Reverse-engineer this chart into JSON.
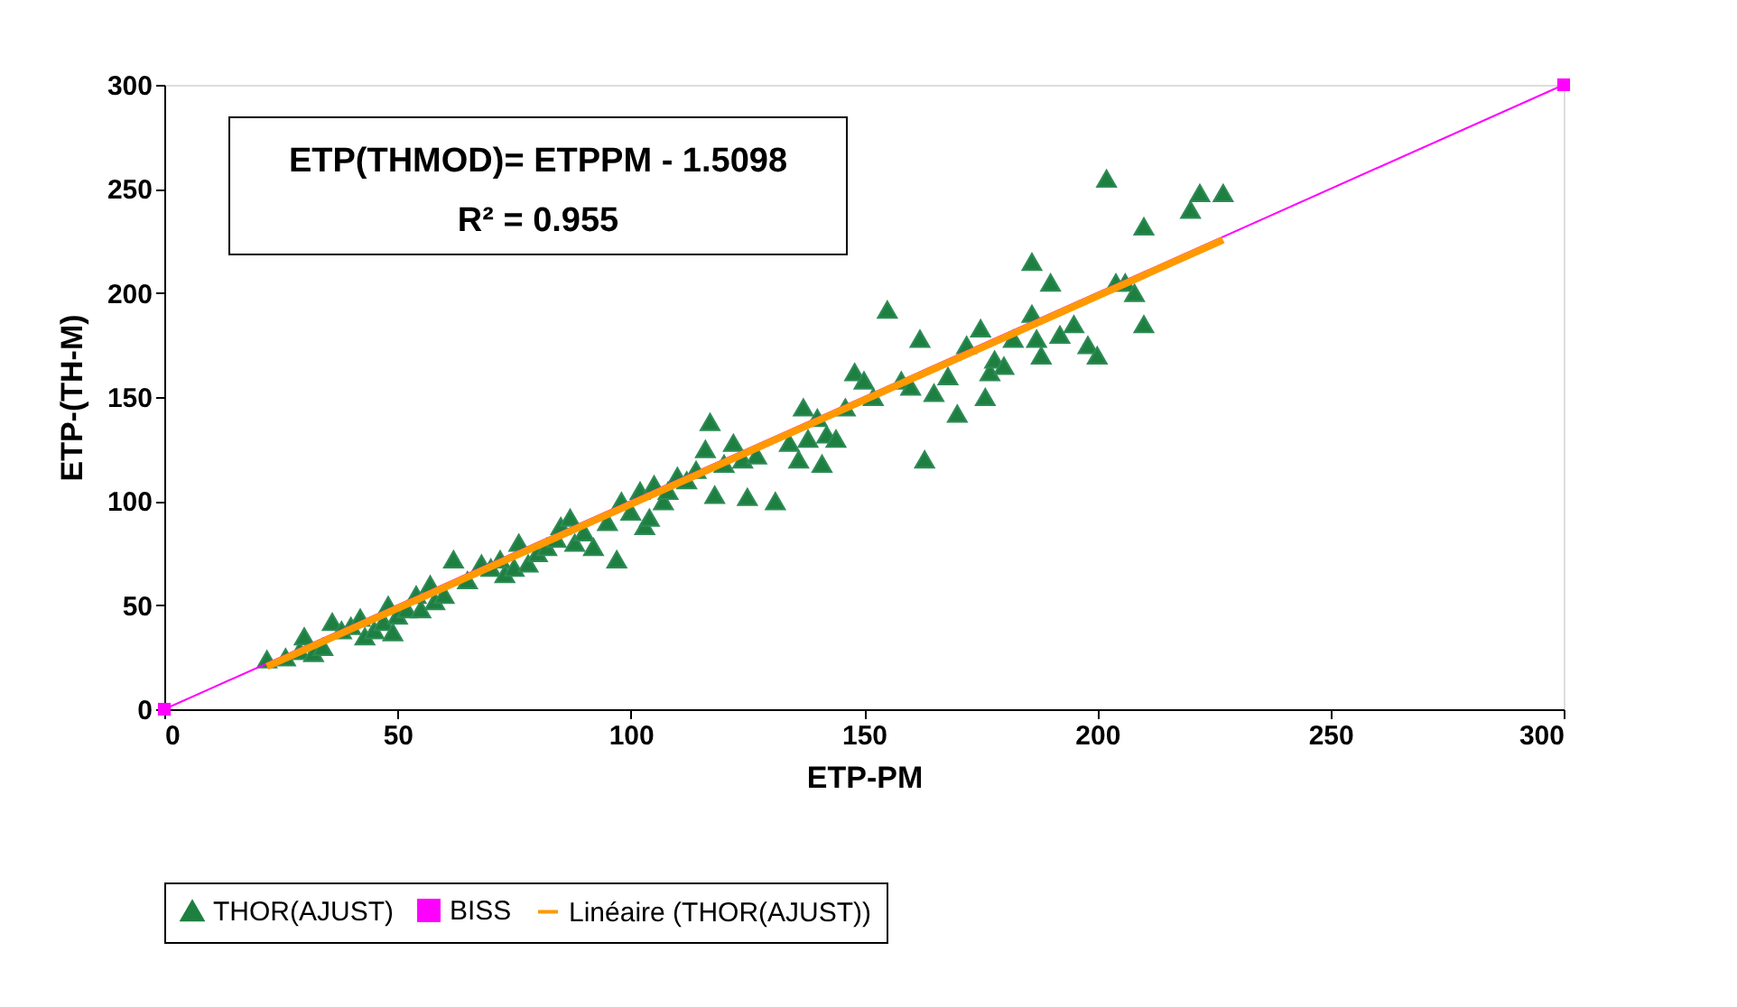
{
  "chart_data": {
    "type": "scatter",
    "xlabel": "ETP-PM",
    "ylabel": "ETP-(TH-M)",
    "xlim": [
      0,
      300
    ],
    "ylim": [
      0,
      300
    ],
    "xticks": [
      0,
      50,
      100,
      150,
      200,
      250,
      300
    ],
    "yticks": [
      0,
      50,
      100,
      150,
      200,
      250,
      300
    ],
    "grid": false,
    "legend": "bottom",
    "annotations": [
      "ETP(THMOD)= ETPPM - 1.5098",
      "R² = 0.955"
    ],
    "series": [
      {
        "name": "THOR(AJUST)",
        "marker": "triangle",
        "color": "#1e8040",
        "x": [
          22,
          26,
          29,
          30,
          32,
          34,
          36,
          38,
          40,
          42,
          43,
          45,
          47,
          48,
          49,
          50,
          52,
          54,
          55,
          57,
          58,
          60,
          62,
          65,
          68,
          70,
          72,
          73,
          75,
          76,
          78,
          80,
          82,
          84,
          85,
          87,
          88,
          90,
          92,
          95,
          97,
          98,
          100,
          102,
          103,
          104,
          105,
          107,
          108,
          110,
          112,
          114,
          116,
          117,
          118,
          120,
          122,
          124,
          125,
          127,
          131,
          134,
          136,
          137,
          138,
          140,
          141,
          142,
          144,
          146,
          148,
          150,
          152,
          155,
          158,
          160,
          162,
          163,
          165,
          168,
          170,
          172,
          175,
          176,
          177,
          178,
          180,
          182,
          186,
          186,
          187,
          188,
          190,
          192,
          195,
          198,
          200,
          202,
          204,
          206,
          208,
          210,
          210,
          220,
          222,
          227
        ],
        "values": [
          24,
          25,
          28,
          35,
          27,
          30,
          42,
          38,
          40,
          44,
          35,
          38,
          42,
          50,
          37,
          45,
          48,
          55,
          48,
          60,
          52,
          55,
          72,
          62,
          70,
          68,
          72,
          65,
          68,
          80,
          70,
          75,
          78,
          82,
          88,
          92,
          80,
          85,
          78,
          90,
          72,
          100,
          95,
          105,
          88,
          92,
          108,
          100,
          105,
          112,
          110,
          115,
          125,
          138,
          103,
          118,
          128,
          120,
          102,
          122,
          100,
          128,
          120,
          145,
          130,
          140,
          118,
          132,
          130,
          145,
          162,
          158,
          150,
          192,
          158,
          155,
          178,
          120,
          152,
          160,
          142,
          175,
          183,
          150,
          162,
          168,
          165,
          178,
          215,
          190,
          178,
          170,
          205,
          180,
          185,
          175,
          170,
          255,
          205,
          205,
          200,
          232,
          185,
          240,
          248,
          248
        ]
      },
      {
        "name": "BISS",
        "type": "line",
        "marker": "square",
        "color": "#ff00ff",
        "line_style": "solid",
        "x": [
          0,
          300
        ],
        "values": [
          0,
          300
        ]
      },
      {
        "name": "Linéaire (THOR(AJUST))",
        "type": "line",
        "marker": "none",
        "color": "#ff9900",
        "line_style": "solid",
        "x": [
          22,
          227
        ],
        "values": [
          20.5,
          225.5
        ]
      }
    ]
  }
}
